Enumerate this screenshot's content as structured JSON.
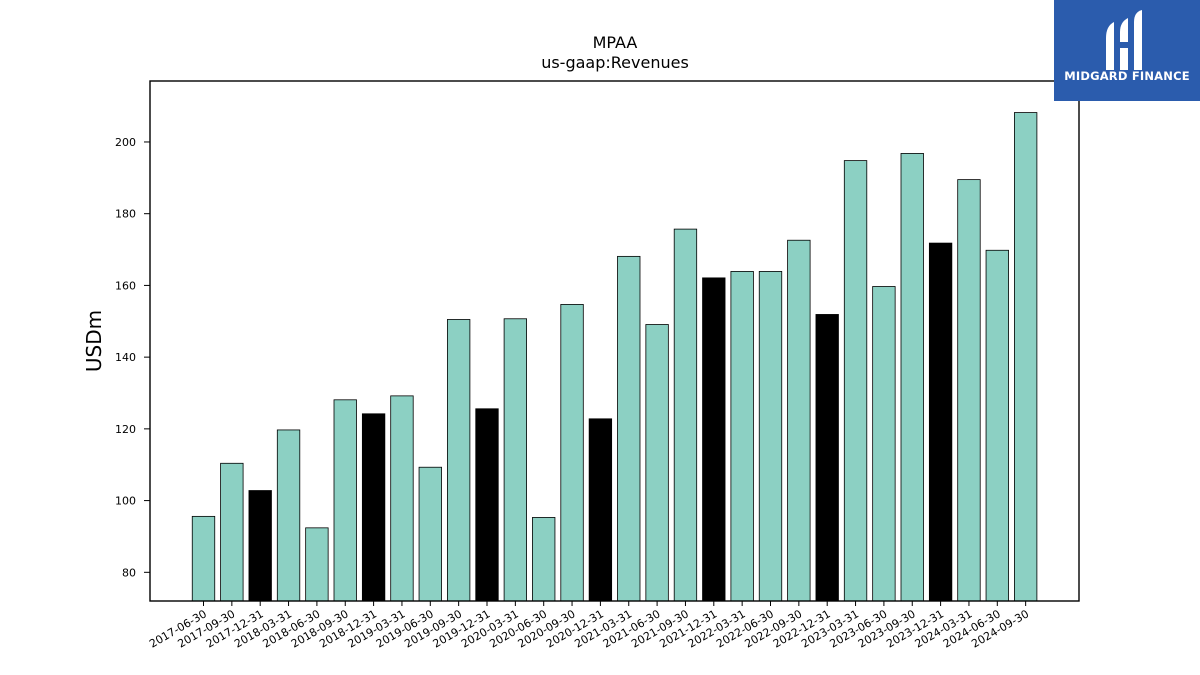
{
  "brand": {
    "name": "MIDGARD FINANCE",
    "bg": "#2b5cad",
    "fg": "#ffffff"
  },
  "colors": {
    "bar_default": "#8cd0c3",
    "bar_highlight": "#000000",
    "edge": "#000000"
  },
  "chart_data": {
    "type": "bar",
    "title": "MPAA",
    "subtitle": "us-gaap:Revenues",
    "xlabel": "",
    "ylabel": "USDm",
    "ylim": [
      72,
      217
    ],
    "yticks": [
      80,
      100,
      120,
      140,
      160,
      180,
      200
    ],
    "grid": false,
    "categories": [
      "2017-06-30",
      "2017-09-30",
      "2017-12-31",
      "2018-03-31",
      "2018-06-30",
      "2018-09-30",
      "2018-12-31",
      "2019-03-31",
      "2019-06-30",
      "2019-09-30",
      "2019-12-31",
      "2020-03-31",
      "2020-06-30",
      "2020-09-30",
      "2020-12-31",
      "2021-03-31",
      "2021-06-30",
      "2021-09-30",
      "2021-12-31",
      "2022-03-31",
      "2022-06-30",
      "2022-09-30",
      "2022-12-31",
      "2023-03-31",
      "2023-06-30",
      "2023-09-30",
      "2023-12-31",
      "2024-03-31",
      "2024-06-30",
      "2024-09-30"
    ],
    "values": [
      95.6,
      110.4,
      102.8,
      119.7,
      92.4,
      128.1,
      124.2,
      129.2,
      109.3,
      150.5,
      125.6,
      150.7,
      95.3,
      154.7,
      122.8,
      168.1,
      149.1,
      175.7,
      162.1,
      163.9,
      163.9,
      172.6,
      151.9,
      194.8,
      159.7,
      196.8,
      171.8,
      189.5,
      169.8,
      208.2
    ],
    "highlight": [
      false,
      false,
      true,
      false,
      false,
      false,
      true,
      false,
      false,
      false,
      true,
      false,
      false,
      false,
      true,
      false,
      false,
      false,
      true,
      false,
      false,
      false,
      true,
      false,
      false,
      false,
      true,
      false,
      false,
      false
    ]
  }
}
